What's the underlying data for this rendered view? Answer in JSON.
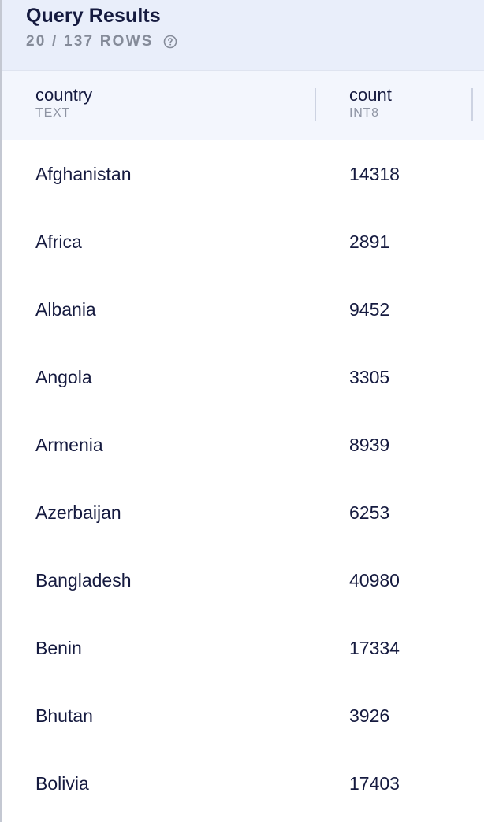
{
  "header": {
    "title": "Query Results",
    "row_count": "20 / 137 ROWS",
    "help_icon": "question-circle-icon"
  },
  "columns": [
    {
      "name": "country",
      "type": "TEXT"
    },
    {
      "name": "count",
      "type": "INT8"
    }
  ],
  "rows": [
    {
      "country": "Afghanistan",
      "count": "14318"
    },
    {
      "country": "Africa",
      "count": "2891"
    },
    {
      "country": "Albania",
      "count": "9452"
    },
    {
      "country": "Angola",
      "count": "3305"
    },
    {
      "country": "Armenia",
      "count": "8939"
    },
    {
      "country": "Azerbaijan",
      "count": "6253"
    },
    {
      "country": "Bangladesh",
      "count": "40980"
    },
    {
      "country": "Benin",
      "count": "17334"
    },
    {
      "country": "Bhutan",
      "count": "3926"
    },
    {
      "country": "Bolivia",
      "count": "17403"
    }
  ],
  "colors": {
    "header_bg": "#e9eefa",
    "column_header_bg": "#f3f6fd",
    "text": "#151a3f",
    "muted": "#858b99"
  }
}
